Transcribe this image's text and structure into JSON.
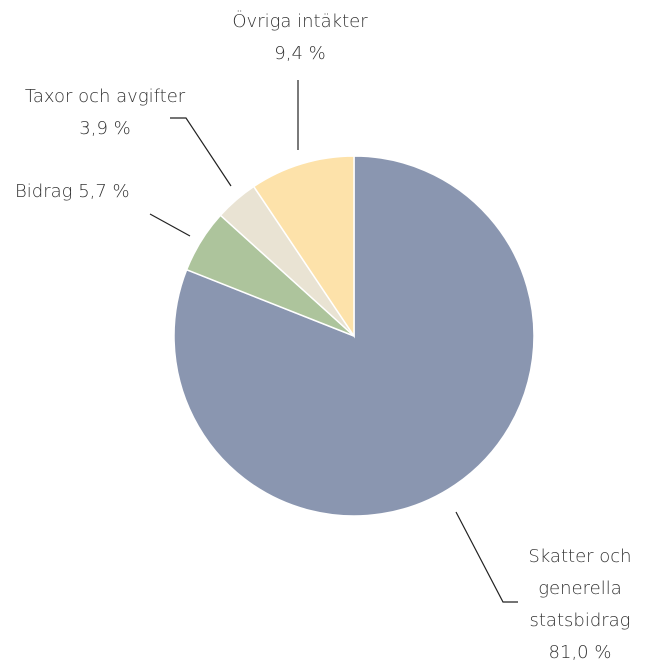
{
  "chart_data": {
    "type": "pie",
    "categories": [
      "Skatter och generella statsbidrag",
      "Bidrag",
      "Taxor och avgifter",
      "Övriga intäkter"
    ],
    "values": [
      81.0,
      5.7,
      3.9,
      9.4
    ],
    "value_labels": [
      "81,0 %",
      "5,7 %",
      "3,9 %",
      "9,4 %"
    ],
    "colors": [
      "#8a96b0",
      "#adc49c",
      "#e9e3d3",
      "#fde2aa"
    ]
  }
}
